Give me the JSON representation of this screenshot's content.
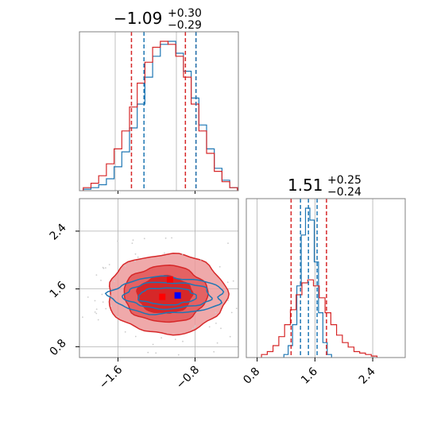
{
  "colors": {
    "blue": "#1f77b4",
    "red": "#d62728",
    "red_fill_dark": "#d62728",
    "red_fill_light": "#ec9a9b",
    "marker_red": "#ff0000",
    "marker_blue": "#0000ff"
  },
  "chart_data": [
    {
      "type": "histogram",
      "panel": "top-left",
      "parameter_index": 0,
      "title": {
        "median": "−1.09",
        "plus": "+0.30",
        "minus": "−0.29"
      },
      "xlim": [
        -2.0,
        -0.35
      ],
      "grid": true,
      "series": [
        {
          "name": "",
          "color": "blue",
          "centers": [
            -1.92,
            -1.84,
            -1.76,
            -1.68,
            -1.6,
            -1.52,
            -1.44,
            -1.36,
            -1.28,
            -1.2,
            -1.12,
            -1.04,
            -0.96,
            -0.88,
            -0.8,
            -0.72,
            -0.64,
            -0.56,
            -0.48,
            -0.4
          ],
          "heights": [
            0.01,
            0.02,
            0.04,
            0.08,
            0.16,
            0.26,
            0.42,
            0.58,
            0.76,
            0.9,
            0.98,
            1.0,
            0.92,
            0.8,
            0.62,
            0.44,
            0.28,
            0.15,
            0.07,
            0.02
          ]
        },
        {
          "name": "",
          "color": "red",
          "centers": [
            -1.92,
            -1.84,
            -1.76,
            -1.68,
            -1.6,
            -1.52,
            -1.44,
            -1.36,
            -1.28,
            -1.2,
            -1.12,
            -1.04,
            -0.96,
            -0.88,
            -0.8,
            -0.72,
            -0.64,
            -0.56,
            -0.48,
            -0.4
          ],
          "heights": [
            0.02,
            0.05,
            0.1,
            0.18,
            0.28,
            0.4,
            0.56,
            0.72,
            0.86,
            0.96,
            1.0,
            0.98,
            0.9,
            0.76,
            0.58,
            0.4,
            0.25,
            0.13,
            0.06,
            0.02
          ]
        }
      ],
      "quantile_lines": [
        {
          "color": "red",
          "x": [
            -1.46,
            -0.9,
            -0.79
          ]
        },
        {
          "color": "blue",
          "x": [
            -1.33,
            -0.79
          ]
        }
      ]
    },
    {
      "type": "histogram",
      "panel": "bottom-right",
      "parameter_index": 1,
      "title": {
        "median": "1.51",
        "plus": "+0.25",
        "minus": "−0.24"
      },
      "xlim": [
        0.65,
        2.85
      ],
      "xticks": [
        0.8,
        1.6,
        2.4
      ],
      "xtick_labels": [
        "0.8",
        "1.6",
        "2.4"
      ],
      "grid": true,
      "series": [
        {
          "name": "",
          "color": "blue",
          "centers": [
            1.2,
            1.26,
            1.32,
            1.38,
            1.44,
            1.5,
            1.56,
            1.62,
            1.68,
            1.74,
            1.8
          ],
          "heights": [
            0.02,
            0.08,
            0.22,
            0.48,
            0.82,
            1.0,
            0.92,
            0.64,
            0.3,
            0.1,
            0.02
          ]
        },
        {
          "name": "",
          "color": "red",
          "centers": [
            0.9,
            0.98,
            1.06,
            1.14,
            1.22,
            1.3,
            1.38,
            1.46,
            1.54,
            1.62,
            1.7,
            1.78,
            1.86,
            1.94,
            2.02,
            2.1,
            2.18,
            2.26,
            2.34,
            2.42
          ],
          "heights": [
            0.02,
            0.04,
            0.08,
            0.14,
            0.22,
            0.32,
            0.42,
            0.5,
            0.52,
            0.48,
            0.4,
            0.3,
            0.22,
            0.15,
            0.1,
            0.07,
            0.04,
            0.03,
            0.02,
            0.01
          ]
        }
      ],
      "quantile_lines": [
        {
          "color": "red",
          "x": [
            1.27,
            1.76
          ]
        },
        {
          "color": "blue",
          "x": [
            1.4,
            1.51,
            1.63
          ]
        }
      ]
    },
    {
      "type": "contour",
      "panel": "bottom-left",
      "xlim": [
        -2.0,
        -0.35
      ],
      "ylim": [
        0.65,
        2.85
      ],
      "xticks": [
        -1.6,
        -0.8
      ],
      "xtick_labels": [
        "−1.6",
        "−0.8"
      ],
      "yticks": [
        0.8,
        1.6,
        2.4
      ],
      "ytick_labels": [
        "0.8",
        "1.6",
        "2.4"
      ],
      "grid": true,
      "red_contours": {
        "center": [
          -1.09,
          1.53
        ],
        "sigma": [
          0.3,
          0.27
        ]
      },
      "blue_contours": {
        "center": [
          -1.09,
          1.51
        ],
        "sigma": [
          0.3,
          0.13
        ]
      },
      "markers": [
        {
          "color": "marker_red",
          "x": -1.06,
          "y": 1.73
        },
        {
          "color": "marker_red",
          "x": -1.14,
          "y": 1.49
        },
        {
          "color": "marker_blue",
          "x": -0.98,
          "y": 1.51
        }
      ]
    }
  ]
}
